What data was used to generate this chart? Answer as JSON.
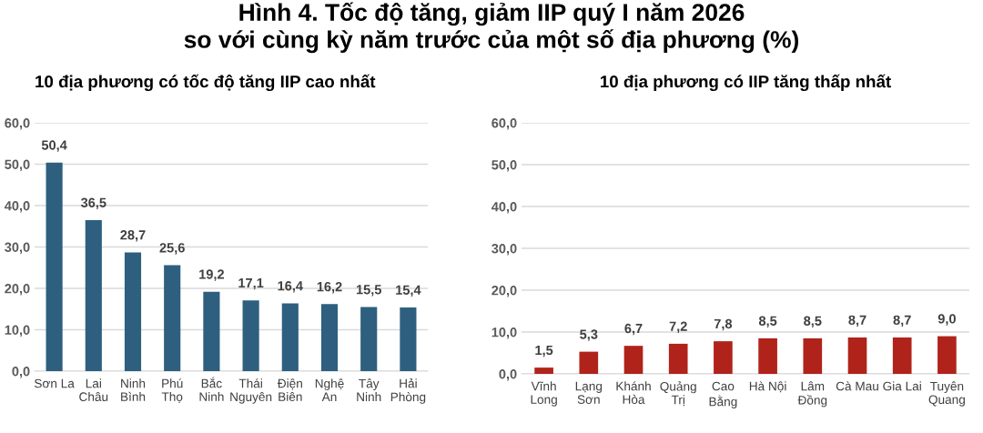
{
  "chart_data": [
    {
      "type": "bar",
      "title": "Hình 4. Tốc độ tăng, giảm IIP quý I năm 2026\nso với cùng kỳ năm trước của một số địa phương (%)",
      "subtitle": "10 địa phương có tốc độ tăng IIP cao nhất",
      "categories": [
        "Sơn La",
        "Lai\nChâu",
        "Ninh\nBình",
        "Phú\nThọ",
        "Bắc\nNinh",
        "Thái\nNguyên",
        "Điện\nBiên",
        "Nghệ\nAn",
        "Tây\nNinh",
        "Hải\nPhòng"
      ],
      "series": [
        {
          "color": "#2e5f7f",
          "values": [
            50.4,
            36.5,
            28.7,
            25.6,
            19.2,
            17.1,
            16.4,
            16.2,
            15.5,
            15.4
          ],
          "value_labels": [
            "50,4",
            "36,5",
            "28,7",
            "25,6",
            "19,2",
            "17,1",
            "16,4",
            "16,2",
            "15,5",
            "15,4"
          ]
        }
      ],
      "ylim": [
        0,
        60
      ],
      "yticks": [
        {
          "value": 0,
          "label": "0,0"
        },
        {
          "value": 10,
          "label": "10,0"
        },
        {
          "value": 20,
          "label": "20,0"
        },
        {
          "value": 30,
          "label": "30,0"
        },
        {
          "value": 40,
          "label": "40,0"
        },
        {
          "value": 50,
          "label": "50,0"
        },
        {
          "value": 60,
          "label": "60,0"
        }
      ],
      "grid": "y",
      "legend": false
    },
    {
      "type": "bar",
      "subtitle": "10 địa phương có IIP tăng thấp nhất",
      "categories": [
        "Vĩnh\nLong",
        "Lạng\nSơn",
        "Khánh\nHòa",
        "Quảng\nTrị",
        "Cao\nBằng",
        "Hà Nội",
        "Lâm\nĐồng",
        "Cà Mau",
        "Gia Lai",
        "Tuyên\nQuang"
      ],
      "series": [
        {
          "color": "#b0231b",
          "values": [
            1.5,
            5.3,
            6.7,
            7.2,
            7.8,
            8.5,
            8.5,
            8.7,
            8.7,
            9.0
          ],
          "value_labels": [
            "1,5",
            "5,3",
            "6,7",
            "7,2",
            "7,8",
            "8,5",
            "8,5",
            "8,7",
            "8,7",
            "9,0"
          ]
        }
      ],
      "ylim": [
        0,
        60
      ],
      "yticks": [
        {
          "value": 0,
          "label": "0,0"
        },
        {
          "value": 10,
          "label": "10,0"
        },
        {
          "value": 20,
          "label": "20,0"
        },
        {
          "value": 30,
          "label": "30,0"
        },
        {
          "value": 40,
          "label": "40,0"
        },
        {
          "value": 50,
          "label": "50,0"
        },
        {
          "value": 60,
          "label": "60,0"
        }
      ],
      "grid": "y",
      "legend": false
    }
  ]
}
